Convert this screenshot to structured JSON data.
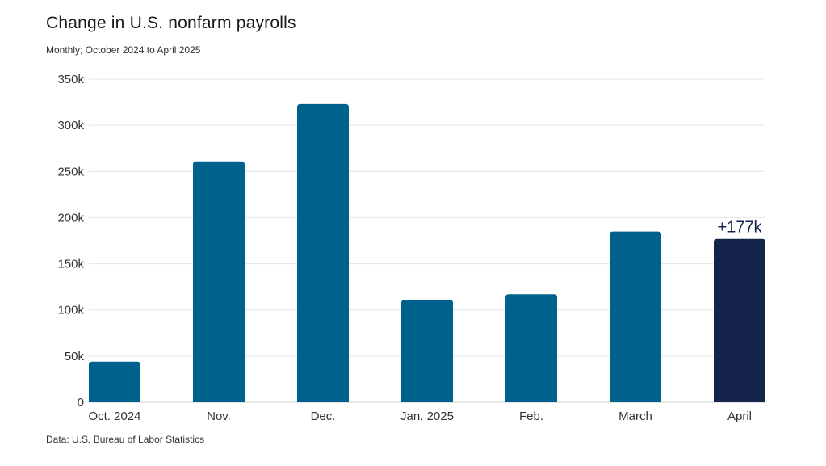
{
  "chart_data": {
    "type": "bar",
    "title": "Change in U.S. nonfarm payrolls",
    "subtitle": "Monthly; October 2024 to April 2025",
    "source": "Data: U.S. Bureau of Labor Statistics",
    "categories": [
      "Oct. 2024",
      "Nov.",
      "Dec.",
      "Jan. 2025",
      "Feb.",
      "March",
      "April"
    ],
    "values": [
      44000,
      261000,
      323000,
      111000,
      117000,
      185000,
      177000
    ],
    "ylim": [
      0,
      350000
    ],
    "yticks": [
      0,
      50000,
      100000,
      150000,
      200000,
      250000,
      300000,
      350000
    ],
    "ytick_labels": [
      "0",
      "50k",
      "100k",
      "150k",
      "200k",
      "250k",
      "300k",
      "350k"
    ],
    "grid": true,
    "colors": {
      "default": "#00628c",
      "highlight": "#14244b",
      "grid": "#e6e6e6"
    },
    "highlight_index": 6,
    "annotations": [
      {
        "category": "April",
        "text": "+177k"
      }
    ]
  }
}
